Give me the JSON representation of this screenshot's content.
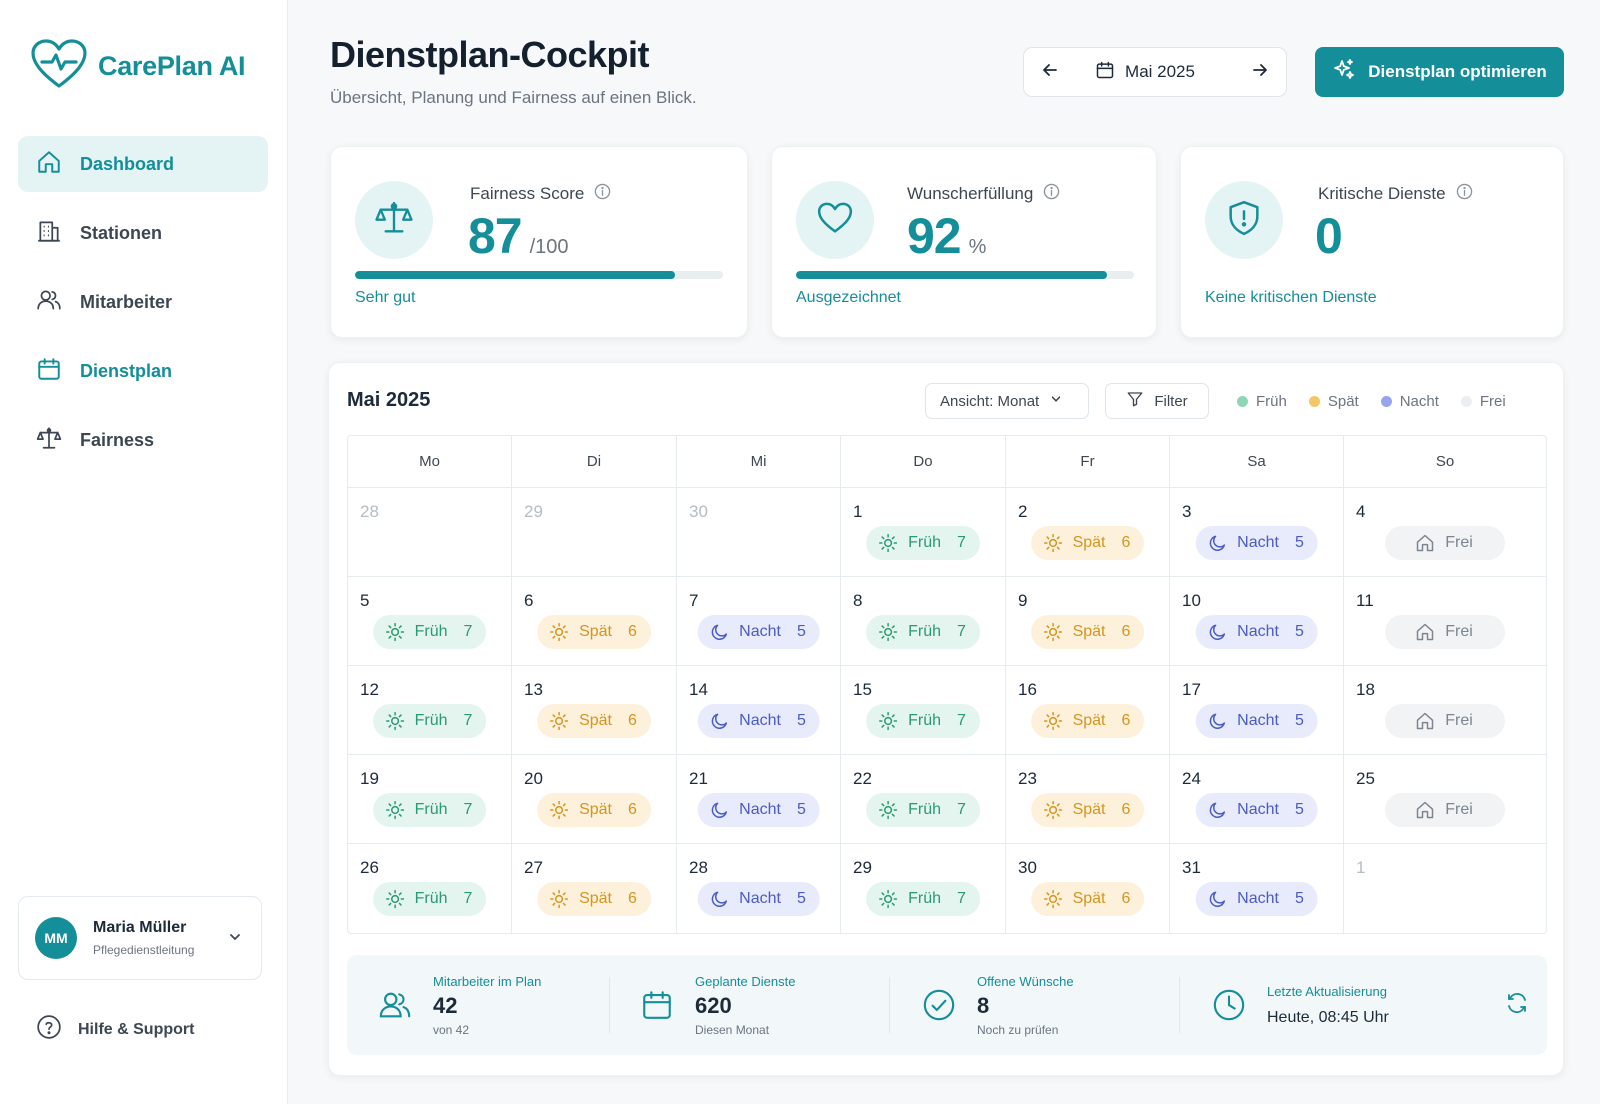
{
  "app": {
    "name": "CarePlan AI"
  },
  "sidebar": {
    "items": [
      {
        "label": "Dashboard",
        "icon": "home-icon"
      },
      {
        "label": "Stationen",
        "icon": "building-icon"
      },
      {
        "label": "Mitarbeiter",
        "icon": "users-icon"
      },
      {
        "label": "Dienstplan",
        "icon": "calendar-icon"
      },
      {
        "label": "Fairness",
        "icon": "scale-icon"
      }
    ],
    "user": {
      "initials": "MM",
      "name": "Maria Müller",
      "role": "Pflegedienstleitung"
    },
    "help_label": "Hilfe & Support"
  },
  "header": {
    "title": "Dienstplan-Cockpit",
    "subtitle": "Übersicht, Planung und Fairness auf einen Blick.",
    "month": "Mai 2025",
    "optimize_label": "Dienstplan optimieren"
  },
  "kpis": [
    {
      "title": "Fairness Score",
      "value": "87",
      "unit": "/100",
      "progress": 0.87,
      "status": "Sehr gut"
    },
    {
      "title": "Wunscherfüllung",
      "value": "92",
      "unit": "%",
      "progress": 0.92,
      "status": "Ausgezeichnet"
    },
    {
      "title": "Kritische Dienste",
      "value": "0",
      "unit": "",
      "status": "Keine kritischen Dienste"
    }
  ],
  "calendar": {
    "title": "Mai 2025",
    "view_label": "Ansicht: Monat",
    "filter_label": "Filter",
    "legend": [
      {
        "label": "Früh",
        "color": "#8fd6b8"
      },
      {
        "label": "Spät",
        "color": "#f3c766"
      },
      {
        "label": "Nacht",
        "color": "#97a4ee"
      },
      {
        "label": "Frei",
        "color": "#eceff2"
      }
    ],
    "weekdays": [
      "Mo",
      "Di",
      "Mi",
      "Do",
      "Fr",
      "Sa",
      "So"
    ],
    "shift_labels": {
      "frueh": "Früh",
      "spaet": "Spät",
      "nacht": "Nacht",
      "frei": "Frei"
    },
    "weeks": [
      [
        {
          "day": "28",
          "muted": true
        },
        {
          "day": "29",
          "muted": true
        },
        {
          "day": "30",
          "muted": true
        },
        {
          "day": "1",
          "shift": "frueh",
          "count": "7"
        },
        {
          "day": "2",
          "shift": "spaet",
          "count": "6"
        },
        {
          "day": "3",
          "shift": "nacht",
          "count": "5"
        },
        {
          "day": "4",
          "shift": "frei"
        }
      ],
      [
        {
          "day": "5",
          "shift": "frueh",
          "count": "7"
        },
        {
          "day": "6",
          "shift": "spaet",
          "count": "6"
        },
        {
          "day": "7",
          "shift": "nacht",
          "count": "5"
        },
        {
          "day": "8",
          "shift": "frueh",
          "count": "7"
        },
        {
          "day": "9",
          "shift": "spaet",
          "count": "6"
        },
        {
          "day": "10",
          "shift": "nacht",
          "count": "5"
        },
        {
          "day": "11",
          "shift": "frei"
        }
      ],
      [
        {
          "day": "12",
          "shift": "frueh",
          "count": "7"
        },
        {
          "day": "13",
          "shift": "spaet",
          "count": "6"
        },
        {
          "day": "14",
          "shift": "nacht",
          "count": "5"
        },
        {
          "day": "15",
          "shift": "frueh",
          "count": "7"
        },
        {
          "day": "16",
          "shift": "spaet",
          "count": "6"
        },
        {
          "day": "17",
          "shift": "nacht",
          "count": "5"
        },
        {
          "day": "18",
          "shift": "frei"
        }
      ],
      [
        {
          "day": "19",
          "shift": "frueh",
          "count": "7"
        },
        {
          "day": "20",
          "shift": "spaet",
          "count": "6"
        },
        {
          "day": "21",
          "shift": "nacht",
          "count": "5"
        },
        {
          "day": "22",
          "shift": "frueh",
          "count": "7"
        },
        {
          "day": "23",
          "shift": "spaet",
          "count": "6"
        },
        {
          "day": "24",
          "shift": "nacht",
          "count": "5"
        },
        {
          "day": "25",
          "shift": "frei"
        }
      ],
      [
        {
          "day": "26",
          "shift": "frueh",
          "count": "7"
        },
        {
          "day": "27",
          "shift": "spaet",
          "count": "6"
        },
        {
          "day": "28",
          "shift": "nacht",
          "count": "5"
        },
        {
          "day": "29",
          "shift": "frueh",
          "count": "7"
        },
        {
          "day": "30",
          "shift": "spaet",
          "count": "6"
        },
        {
          "day": "31",
          "shift": "nacht",
          "count": "5"
        },
        {
          "day": "1",
          "muted": true
        }
      ]
    ]
  },
  "stats": [
    {
      "label": "Mitarbeiter im Plan",
      "value": "42",
      "sub": "von 42",
      "icon": "users-icon"
    },
    {
      "label": "Geplante Dienste",
      "value": "620",
      "sub": "Diesen Monat",
      "icon": "calendar-icon"
    },
    {
      "label": "Offene Wünsche",
      "value": "8",
      "sub": "Noch zu prüfen",
      "icon": "check-circle-icon"
    },
    {
      "label": "Letzte Aktualisierung",
      "value": "Heute, 08:45 Uhr",
      "icon": "clock-icon"
    }
  ]
}
